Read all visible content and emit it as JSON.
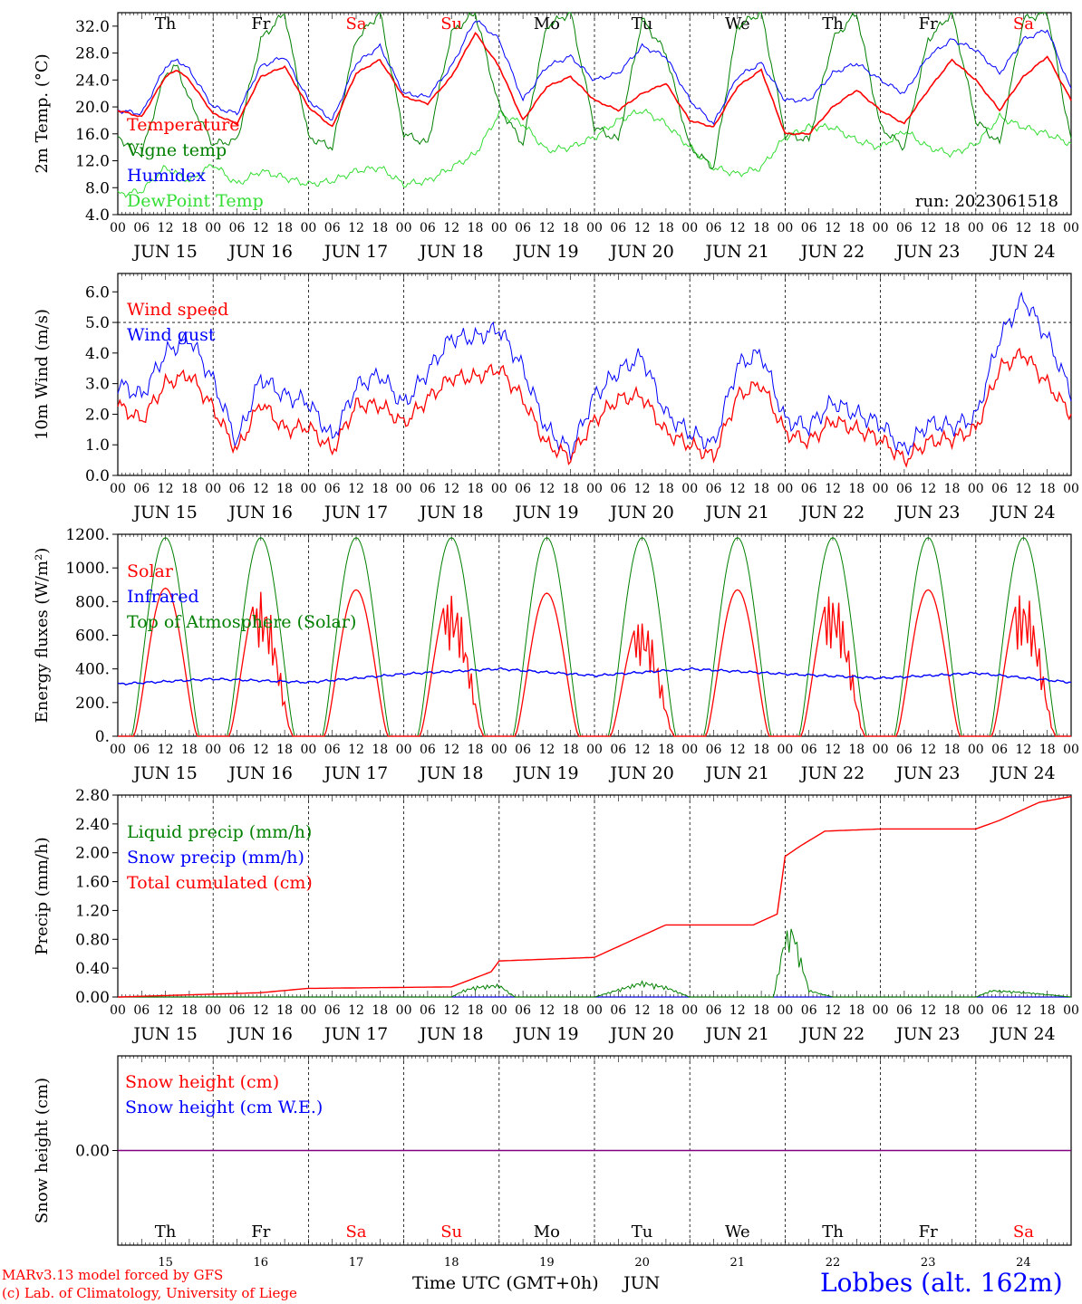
{
  "colors": {
    "red": "#ff0000",
    "green": "#008000",
    "lightgreen": "#33dd33",
    "blue": "#0000ff",
    "purple": "#800080",
    "axis": "#000000"
  },
  "days": {
    "names": [
      "Th",
      "Fr",
      "Sa",
      "Su",
      "Mo",
      "Tu",
      "We",
      "Th",
      "Fr",
      "Sa"
    ],
    "weekend_color": [
      "#000000",
      "#000000",
      "#ff0000",
      "#ff0000",
      "#000000",
      "#000000",
      "#000000",
      "#000000",
      "#000000",
      "#ff0000"
    ],
    "dates": [
      "JUN 15",
      "JUN 16",
      "JUN 17",
      "JUN 18",
      "JUN 19",
      "JUN 20",
      "JUN 21",
      "JUN 22",
      "JUN 23",
      "JUN 24"
    ],
    "numbers": [
      "15",
      "16",
      "17",
      "18",
      "19",
      "20",
      "21",
      "22",
      "23",
      "24"
    ],
    "hour_ticks": [
      "00",
      "06",
      "12",
      "18"
    ],
    "final_tick": "00"
  },
  "footer": {
    "model": "MARv3.13 model forced by GFS",
    "credit": "(c) Lab. of Climatology, University of Liege",
    "xlabel": "Time UTC (GMT+0h)",
    "month": "JUN",
    "location": "Lobbes (alt. 162m)"
  },
  "chart_data": [
    {
      "type": "line",
      "id": "temperature",
      "ylabel": "2m Temp. (°C)",
      "ylim": [
        4.0,
        34.0
      ],
      "yticks": [
        "4.0",
        "8.0",
        "12.0",
        "16.0",
        "20.0",
        "24.0",
        "28.0",
        "32.0"
      ],
      "run_label": "run: 2023061518",
      "x_unit": "hours since JUN 15 00 UTC",
      "xlim": [
        0,
        240
      ],
      "series": [
        {
          "name": "Temperature",
          "color": "#ff0000",
          "x": [
            0,
            6,
            12,
            15,
            18,
            24,
            30,
            36,
            42,
            48,
            54,
            60,
            66,
            72,
            78,
            84,
            90,
            96,
            102,
            108,
            114,
            120,
            126,
            132,
            138,
            144,
            150,
            156,
            162,
            168,
            174,
            180,
            186,
            192,
            198,
            204,
            210,
            216,
            222,
            228,
            234,
            240
          ],
          "y": [
            19.5,
            18.5,
            24.5,
            25.5,
            24.0,
            19.0,
            17.5,
            24.5,
            26.0,
            20.0,
            17.0,
            25.0,
            27.0,
            21.5,
            20.5,
            24.5,
            31.0,
            26.0,
            18.0,
            23.0,
            24.5,
            21.0,
            19.5,
            22.0,
            23.5,
            18.0,
            17.0,
            23.0,
            25.5,
            16.0,
            16.0,
            20.0,
            22.5,
            19.5,
            17.5,
            22.5,
            27.0,
            24.0,
            19.5,
            24.5,
            27.5,
            21.0
          ]
        },
        {
          "name": "Vigne temp",
          "color": "#008000",
          "x": [
            0,
            6,
            12,
            15,
            18,
            24,
            30,
            36,
            42,
            48,
            54,
            60,
            66,
            72,
            78,
            84,
            90,
            96,
            102,
            108,
            114,
            120,
            126,
            132,
            138,
            144,
            150,
            156,
            162,
            168,
            174,
            180,
            186,
            192,
            198,
            204,
            210,
            216,
            222,
            228,
            234,
            240
          ],
          "y": [
            15.5,
            13.0,
            25.0,
            26.0,
            21.0,
            14.5,
            15.0,
            30.0,
            34.0,
            15.5,
            14.0,
            30.0,
            34.0,
            16.0,
            14.5,
            31.0,
            34.0,
            20.0,
            14.5,
            32.0,
            34.0,
            17.0,
            15.0,
            33.0,
            28.0,
            14.0,
            11.0,
            32.0,
            34.0,
            16.0,
            15.0,
            30.0,
            34.0,
            17.0,
            14.0,
            30.0,
            34.0,
            18.0,
            14.5,
            33.0,
            34.0,
            15.0
          ]
        },
        {
          "name": "Humidex",
          "color": "#0000ff",
          "x": [
            0,
            6,
            12,
            15,
            18,
            24,
            30,
            36,
            42,
            48,
            54,
            60,
            66,
            72,
            78,
            84,
            90,
            96,
            102,
            108,
            114,
            120,
            126,
            132,
            138,
            144,
            150,
            156,
            162,
            168,
            174,
            180,
            186,
            192,
            198,
            204,
            210,
            216,
            222,
            228,
            234,
            240
          ],
          "y": [
            19.5,
            19.0,
            26.0,
            27.0,
            25.5,
            20.0,
            19.0,
            26.0,
            27.5,
            21.0,
            18.0,
            26.5,
            29.0,
            22.0,
            21.5,
            26.0,
            33.0,
            30.0,
            21.0,
            26.0,
            27.5,
            24.0,
            25.0,
            29.0,
            27.5,
            21.0,
            17.5,
            24.5,
            26.5,
            21.0,
            21.0,
            25.0,
            26.5,
            24.0,
            22.0,
            27.5,
            30.0,
            28.5,
            25.0,
            30.0,
            31.5,
            22.5
          ]
        },
        {
          "name": "DewPoint Temp",
          "color": "#33dd33",
          "x": [
            0,
            6,
            12,
            18,
            24,
            30,
            36,
            42,
            48,
            54,
            60,
            66,
            72,
            78,
            84,
            90,
            96,
            102,
            108,
            114,
            120,
            126,
            132,
            138,
            144,
            150,
            156,
            162,
            168,
            174,
            180,
            186,
            192,
            198,
            204,
            210,
            216,
            222,
            228,
            234,
            240
          ],
          "y": [
            7.0,
            7.5,
            11.0,
            9.0,
            11.5,
            8.5,
            10.5,
            9.5,
            8.5,
            9.0,
            10.5,
            11.0,
            8.5,
            9.0,
            11.0,
            13.0,
            19.0,
            17.5,
            13.5,
            14.0,
            15.5,
            18.0,
            19.5,
            17.5,
            14.0,
            11.0,
            10.0,
            11.0,
            15.5,
            17.0,
            17.0,
            15.0,
            14.0,
            16.5,
            14.0,
            13.0,
            14.5,
            18.5,
            17.0,
            16.0,
            14.5
          ]
        }
      ]
    },
    {
      "type": "line",
      "id": "wind",
      "ylabel": "10m Wind (m/s)",
      "ylim": [
        0.0,
        6.6
      ],
      "yticks": [
        "0.0",
        "1.0",
        "2.0",
        "3.0",
        "4.0",
        "5.0",
        "6.0"
      ],
      "ref_line": 5.0,
      "xlim": [
        0,
        240
      ],
      "series": [
        {
          "name": "Wind speed",
          "color": "#ff0000",
          "x": [
            0,
            6,
            12,
            18,
            24,
            30,
            36,
            42,
            48,
            54,
            60,
            66,
            72,
            78,
            84,
            90,
            96,
            102,
            108,
            114,
            120,
            126,
            132,
            138,
            144,
            150,
            156,
            162,
            168,
            174,
            180,
            186,
            192,
            198,
            204,
            210,
            216,
            222,
            228,
            234,
            240
          ],
          "y": [
            2.3,
            1.8,
            3.0,
            3.3,
            2.2,
            0.8,
            2.4,
            1.5,
            1.6,
            0.8,
            2.3,
            2.3,
            1.7,
            2.5,
            3.2,
            3.2,
            3.5,
            2.5,
            1.0,
            0.6,
            1.8,
            2.5,
            2.6,
            1.4,
            1.0,
            0.6,
            2.6,
            3.0,
            1.4,
            1.1,
            1.8,
            1.5,
            1.2,
            0.5,
            1.1,
            1.2,
            1.5,
            3.5,
            4.0,
            3.0,
            2.0
          ]
        },
        {
          "name": "Wind gust",
          "color": "#0000ff",
          "x": [
            0,
            6,
            12,
            18,
            24,
            30,
            36,
            42,
            48,
            54,
            60,
            66,
            72,
            78,
            84,
            90,
            96,
            102,
            108,
            114,
            120,
            126,
            132,
            138,
            144,
            150,
            156,
            162,
            168,
            174,
            180,
            186,
            192,
            198,
            204,
            210,
            216,
            222,
            228,
            234,
            240
          ],
          "y": [
            3.0,
            2.6,
            4.0,
            4.5,
            3.1,
            1.1,
            3.2,
            2.6,
            2.4,
            1.2,
            2.9,
            3.3,
            2.3,
            3.4,
            4.5,
            4.5,
            4.8,
            3.5,
            1.5,
            0.8,
            2.6,
            3.4,
            3.9,
            2.0,
            1.4,
            1.0,
            3.6,
            4.0,
            1.8,
            1.6,
            2.4,
            2.0,
            1.7,
            0.8,
            1.7,
            1.6,
            1.9,
            4.5,
            5.8,
            4.5,
            2.7
          ]
        }
      ]
    },
    {
      "type": "line",
      "id": "energy",
      "ylabel": "Energy fluxes (W/m²)",
      "ylim": [
        0,
        1200
      ],
      "yticks": [
        "0.",
        "200.",
        "400.",
        "600.",
        "800.",
        "1000.",
        "1200."
      ],
      "xlim": [
        0,
        240
      ],
      "solar_peaks": [
        880,
        860,
        870,
        850,
        850,
        700,
        870,
        860,
        870,
        860
      ],
      "toa_peak": 1180,
      "series": [
        {
          "name": "Solar",
          "color": "#ff0000"
        },
        {
          "name": "Infrared",
          "color": "#0000ff",
          "x": [
            0,
            24,
            48,
            72,
            96,
            120,
            144,
            168,
            192,
            216,
            240
          ],
          "y": [
            310,
            340,
            320,
            370,
            400,
            360,
            400,
            370,
            345,
            375,
            320
          ]
        },
        {
          "name": "Top of Atmosphere (Solar)",
          "color": "#008000"
        }
      ]
    },
    {
      "type": "line",
      "id": "precip",
      "ylabel": "Precip (mm/h)",
      "ylim": [
        0.0,
        2.8
      ],
      "yticks": [
        "0.00",
        "0.40",
        "0.80",
        "1.20",
        "1.60",
        "2.00",
        "2.40",
        "2.80"
      ],
      "xlim": [
        0,
        240
      ],
      "series": [
        {
          "name": "Liquid precip (mm/h)",
          "color": "#008000",
          "x": [
            0,
            84,
            87,
            90,
            96,
            100,
            120,
            128,
            132,
            138,
            144,
            165,
            168,
            170,
            174,
            180,
            216,
            220,
            226,
            232,
            240
          ],
          "y": [
            0,
            0,
            0.1,
            0.15,
            0.18,
            0,
            0,
            0.15,
            0.22,
            0.15,
            0,
            0,
            0.9,
            1.0,
            0.1,
            0,
            0,
            0.1,
            0.08,
            0.05,
            0
          ]
        },
        {
          "name": "Snow precip (mm/h)",
          "color": "#0000ff",
          "x": [
            0,
            240
          ],
          "y": [
            0,
            0
          ]
        },
        {
          "name": "Total cumulated (cm)",
          "color": "#ff0000",
          "x": [
            0,
            12,
            36,
            48,
            84,
            94,
            96,
            120,
            126,
            138,
            144,
            160,
            166,
            168,
            172,
            178,
            192,
            216,
            222,
            232,
            240
          ],
          "y": [
            0,
            0.02,
            0.06,
            0.12,
            0.14,
            0.35,
            0.5,
            0.55,
            0.7,
            1.0,
            1.0,
            1.0,
            1.15,
            1.95,
            2.1,
            2.3,
            2.33,
            2.33,
            2.45,
            2.7,
            2.78
          ]
        }
      ]
    },
    {
      "type": "line",
      "id": "snow",
      "ylabel": "Snow height (cm)",
      "ylim": [
        -1,
        1
      ],
      "yticks": [
        "0.00"
      ],
      "xlim": [
        0,
        240
      ],
      "series": [
        {
          "name": "Snow height (cm)",
          "color": "#ff0000",
          "x": [
            0,
            240
          ],
          "y": [
            0,
            0
          ]
        },
        {
          "name": "Snow height (cm W.E.)",
          "color": "#0000ff",
          "x": [
            0,
            240
          ],
          "y": [
            0,
            0
          ]
        }
      ]
    }
  ]
}
